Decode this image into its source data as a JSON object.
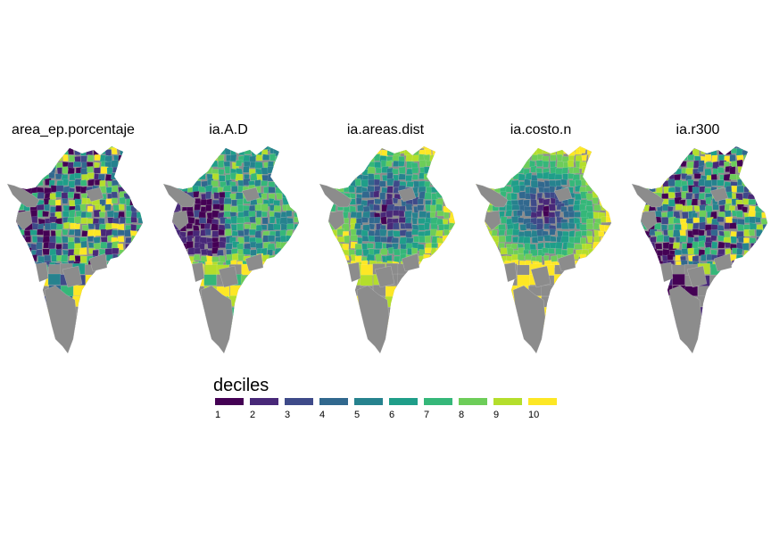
{
  "panels": [
    {
      "title": "area_ep.porcentaje",
      "pattern": "random-west-dark"
    },
    {
      "title": "ia.A.D",
      "pattern": "west-dark-south-bright"
    },
    {
      "title": "ia.areas.dist",
      "pattern": "center-dark-south-bright"
    },
    {
      "title": "ia.costo.n",
      "pattern": "radial-from-center"
    },
    {
      "title": "ia.r300",
      "pattern": "random-southwest-dark"
    }
  ],
  "legend": {
    "title": "deciles",
    "labels": [
      "1",
      "2",
      "3",
      "4",
      "5",
      "6",
      "7",
      "8",
      "9",
      "10"
    ],
    "colors": [
      "#440154",
      "#482878",
      "#3E4A89",
      "#31688E",
      "#26828E",
      "#1F9E89",
      "#35B779",
      "#6DCD59",
      "#B4DE2C",
      "#FDE725"
    ]
  },
  "na_color": "#8C8C8C"
}
